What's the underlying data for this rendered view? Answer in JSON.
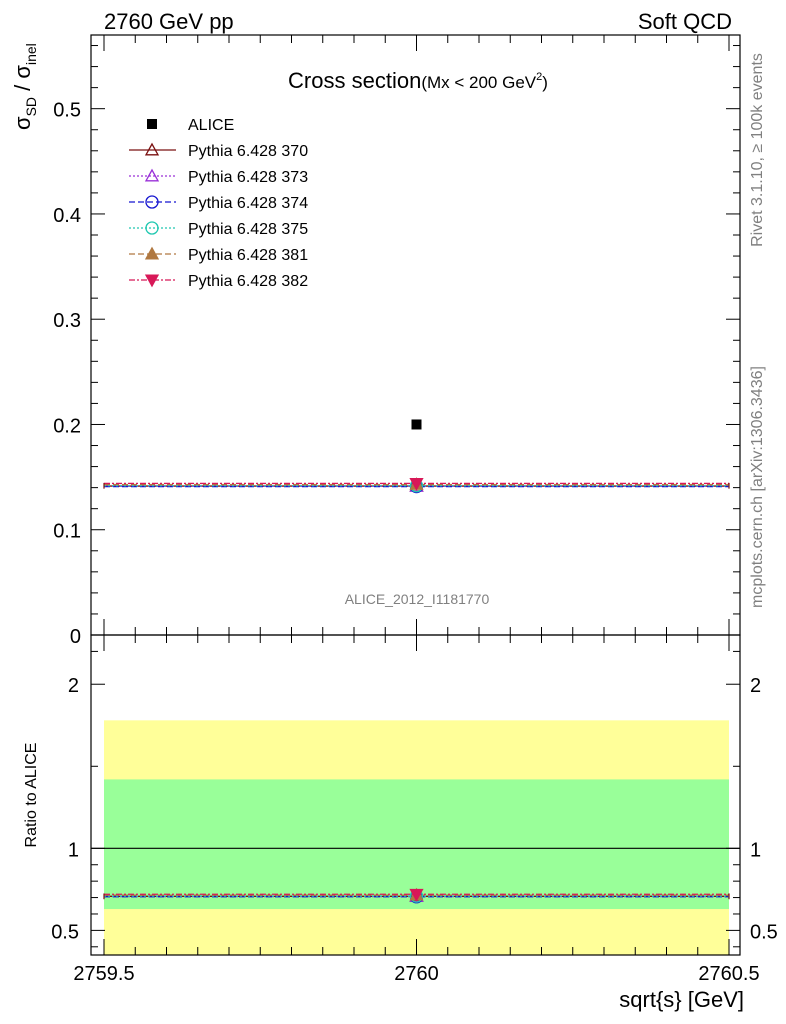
{
  "header": {
    "left": "2760 GeV pp",
    "right": "Soft QCD"
  },
  "side_text": {
    "rivet": "Rivet 3.1.10, ≥ 100k events",
    "mcplots": "mcplots.cern.ch [arXiv:1306.3436]"
  },
  "chart_data": [
    {
      "type": "scatter",
      "title": "Cross section",
      "title_sub": "(Mx < 200 GeV",
      "title_sub_sup": "2",
      "title_sub_end": ")",
      "ylabel": {
        "main": "σ",
        "sub1": "SD",
        "mid": " / σ",
        "sub2": "inel"
      },
      "xlim": [
        2759.5,
        2760.5
      ],
      "ylim": [
        0,
        0.57
      ],
      "yticks": [
        {
          "v": 0,
          "label": "0"
        },
        {
          "v": 0.1,
          "label": "0.1"
        },
        {
          "v": 0.2,
          "label": "0.2"
        },
        {
          "v": 0.3,
          "label": "0.3"
        },
        {
          "v": 0.4,
          "label": "0.4"
        },
        {
          "v": 0.5,
          "label": "0.5"
        }
      ],
      "watermark": "ALICE_2012_I1181770",
      "data": {
        "name": "ALICE",
        "x": 2760,
        "y": 0.2
      },
      "series": [
        {
          "name": "Pythia 6.428 370",
          "y": 0.1415,
          "color": "#7a1010",
          "dash": "",
          "marker": "triangle-open"
        },
        {
          "name": "Pythia 6.428 373",
          "y": 0.1412,
          "color": "#9a30d8",
          "dash": "2,2",
          "marker": "triangle-open"
        },
        {
          "name": "Pythia 6.428 374",
          "y": 0.141,
          "color": "#1515d0",
          "dash": "6,3",
          "marker": "circle-open"
        },
        {
          "name": "Pythia 6.428 375",
          "y": 0.1418,
          "color": "#20c8b0",
          "dash": "2,2",
          "marker": "circle-open"
        },
        {
          "name": "Pythia 6.428 381",
          "y": 0.143,
          "color": "#b07840",
          "dash": "6,3",
          "marker": "triangle-filled"
        },
        {
          "name": "Pythia 6.428 382",
          "y": 0.144,
          "color": "#d81858",
          "dash": "6,2,2,2",
          "marker": "triangle-down-filled"
        }
      ],
      "legend": "top-left"
    },
    {
      "type": "scatter",
      "ylabel": "Ratio to ALICE",
      "xlabel": "sqrt{s} [GeV]",
      "xlim": [
        2759.5,
        2760.5
      ],
      "ylim": [
        0.35,
        2.3
      ],
      "xticks": [
        {
          "v": 2759.5,
          "label": "2759.5"
        },
        {
          "v": 2760,
          "label": "2760"
        },
        {
          "v": 2760.5,
          "label": "2760.5"
        }
      ],
      "yticks": [
        {
          "v": 0.5,
          "label": "0.5"
        },
        {
          "v": 1,
          "label": "1"
        },
        {
          "v": 2,
          "label": "2"
        }
      ],
      "band_green": [
        0.63,
        1.42
      ],
      "band_yellow": [
        0.35,
        1.78
      ],
      "ratios": [
        0.7075,
        0.706,
        0.705,
        0.709,
        0.715,
        0.72
      ]
    }
  ]
}
